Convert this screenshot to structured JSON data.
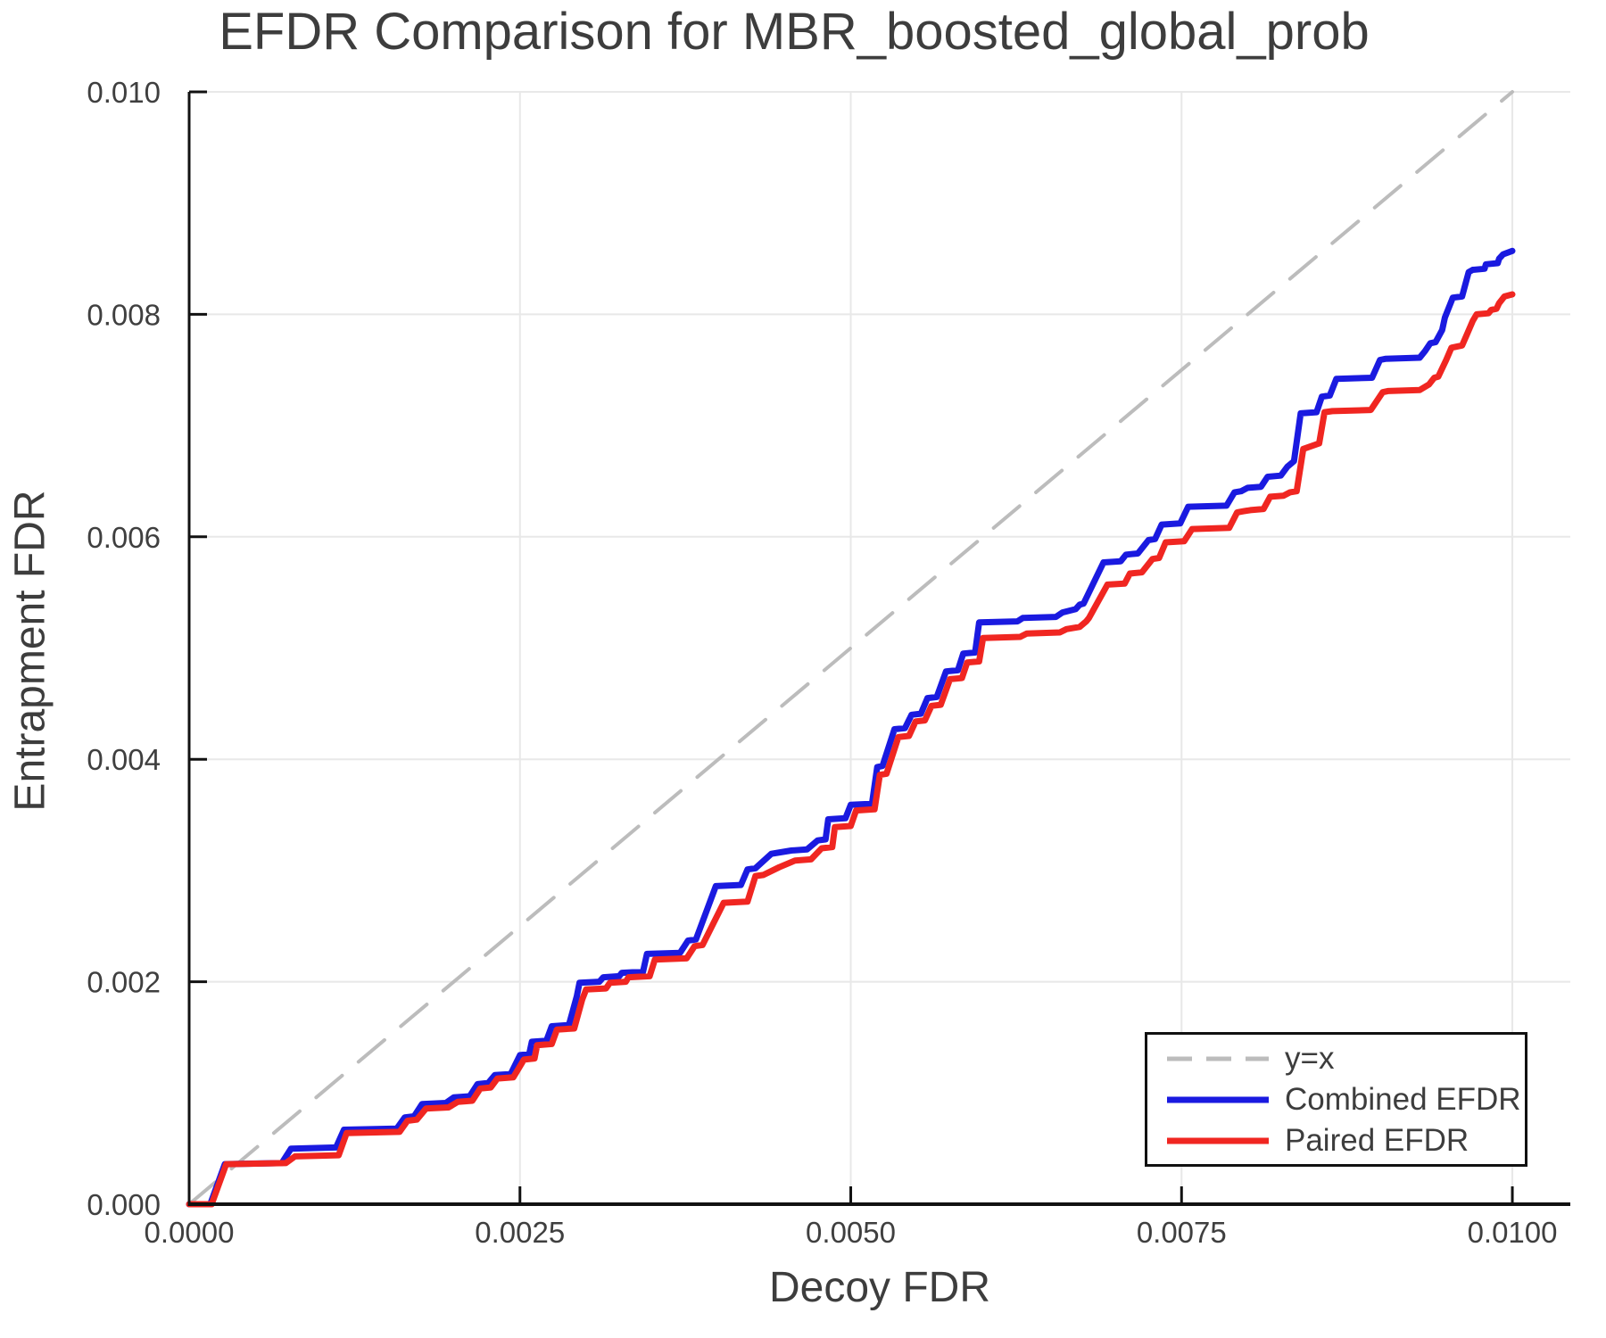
{
  "chart_data": {
    "type": "line",
    "title": "EFDR Comparison for MBR_boosted_global_prob",
    "xlabel": "Decoy FDR",
    "ylabel": "Entrapment FDR",
    "xlim": [
      0,
      0.010438
    ],
    "ylim": [
      0,
      0.01
    ],
    "grid": true,
    "legend_position": "bottom-right",
    "xticks": {
      "values": [
        0.0,
        0.0025,
        0.005,
        0.0075,
        0.01
      ],
      "labels": [
        "0.0000",
        "0.0025",
        "0.0050",
        "0.0075",
        "0.0100"
      ]
    },
    "yticks": {
      "values": [
        0.0,
        0.002,
        0.004,
        0.006,
        0.008,
        0.01
      ],
      "labels": [
        "0.000",
        "0.002",
        "0.004",
        "0.006",
        "0.008",
        "0.010"
      ]
    },
    "colors": {
      "grid": "#e8e8e8",
      "axis": "#111111",
      "text": "#3d3d3d",
      "reference": "#bcbcbc",
      "combined": "#1a1ae0",
      "paired": "#f02621"
    },
    "series": [
      {
        "name": "y=x",
        "style": "dashed",
        "color": "#bcbcbc",
        "points": [
          [
            0.0,
            0.0
          ],
          [
            0.01,
            0.01
          ]
        ]
      },
      {
        "name": "Combined EFDR",
        "style": "solid",
        "color": "#1a1ae0",
        "points": [
          [
            0.0,
            0.0
          ],
          [
            0.00016,
            0.0
          ],
          [
            0.00027,
            0.00036
          ],
          [
            0.0007,
            0.00037
          ],
          [
            0.00077,
            0.0005
          ],
          [
            0.00111,
            0.00051
          ],
          [
            0.00117,
            0.00067
          ],
          [
            0.00157,
            0.00068
          ],
          [
            0.00163,
            0.00078
          ],
          [
            0.0017,
            0.00079
          ],
          [
            0.00176,
            0.0009
          ],
          [
            0.00194,
            0.00091
          ],
          [
            0.002,
            0.00096
          ],
          [
            0.00212,
            0.00097
          ],
          [
            0.00218,
            0.00108
          ],
          [
            0.00226,
            0.00109
          ],
          [
            0.00231,
            0.00116
          ],
          [
            0.00243,
            0.00117
          ],
          [
            0.0025,
            0.00134
          ],
          [
            0.00257,
            0.00135
          ],
          [
            0.00259,
            0.00146
          ],
          [
            0.0027,
            0.00147
          ],
          [
            0.00274,
            0.0016
          ],
          [
            0.00287,
            0.00161
          ],
          [
            0.00293,
            0.00187
          ],
          [
            0.00295,
            0.00199
          ],
          [
            0.0031,
            0.002
          ],
          [
            0.00313,
            0.00204
          ],
          [
            0.00325,
            0.00205
          ],
          [
            0.00327,
            0.00208
          ],
          [
            0.00343,
            0.00209
          ],
          [
            0.00346,
            0.00225
          ],
          [
            0.00371,
            0.00226
          ],
          [
            0.00377,
            0.00237
          ],
          [
            0.00383,
            0.00238
          ],
          [
            0.00398,
            0.00286
          ],
          [
            0.00417,
            0.00287
          ],
          [
            0.00422,
            0.00301
          ],
          [
            0.00428,
            0.00302
          ],
          [
            0.0044,
            0.00315
          ],
          [
            0.00455,
            0.00318
          ],
          [
            0.00467,
            0.00319
          ],
          [
            0.00475,
            0.00327
          ],
          [
            0.00481,
            0.00328
          ],
          [
            0.00483,
            0.00346
          ],
          [
            0.00496,
            0.00347
          ],
          [
            0.005,
            0.00359
          ],
          [
            0.00516,
            0.0036
          ],
          [
            0.0052,
            0.00393
          ],
          [
            0.00524,
            0.00394
          ],
          [
            0.00533,
            0.00427
          ],
          [
            0.00541,
            0.00428
          ],
          [
            0.00546,
            0.0044
          ],
          [
            0.00553,
            0.00441
          ],
          [
            0.00558,
            0.00455
          ],
          [
            0.00565,
            0.00456
          ],
          [
            0.00572,
            0.00479
          ],
          [
            0.00581,
            0.0048
          ],
          [
            0.00585,
            0.00495
          ],
          [
            0.00594,
            0.00496
          ],
          [
            0.00597,
            0.00523
          ],
          [
            0.00626,
            0.00524
          ],
          [
            0.0063,
            0.00527
          ],
          [
            0.00655,
            0.00528
          ],
          [
            0.0066,
            0.00532
          ],
          [
            0.0067,
            0.00535
          ],
          [
            0.00673,
            0.00539
          ],
          [
            0.00676,
            0.0054
          ],
          [
            0.00691,
            0.00577
          ],
          [
            0.00704,
            0.00578
          ],
          [
            0.00708,
            0.00584
          ],
          [
            0.00717,
            0.00585
          ],
          [
            0.00725,
            0.00597
          ],
          [
            0.0073,
            0.00598
          ],
          [
            0.00735,
            0.00611
          ],
          [
            0.00749,
            0.00612
          ],
          [
            0.00755,
            0.00627
          ],
          [
            0.00784,
            0.00628
          ],
          [
            0.0079,
            0.0064
          ],
          [
            0.00795,
            0.00641
          ],
          [
            0.008,
            0.00644
          ],
          [
            0.0081,
            0.00645
          ],
          [
            0.00815,
            0.00654
          ],
          [
            0.00825,
            0.00655
          ],
          [
            0.0083,
            0.00663
          ],
          [
            0.00835,
            0.00668
          ],
          [
            0.0084,
            0.00711
          ],
          [
            0.00852,
            0.00712
          ],
          [
            0.00856,
            0.00726
          ],
          [
            0.00862,
            0.00727
          ],
          [
            0.00867,
            0.00742
          ],
          [
            0.00894,
            0.00743
          ],
          [
            0.009,
            0.00759
          ],
          [
            0.00904,
            0.0076
          ],
          [
            0.0093,
            0.00761
          ],
          [
            0.00934,
            0.00767
          ],
          [
            0.00938,
            0.00774
          ],
          [
            0.00942,
            0.00775
          ],
          [
            0.00947,
            0.00786
          ],
          [
            0.00949,
            0.00797
          ],
          [
            0.00955,
            0.00815
          ],
          [
            0.00962,
            0.00816
          ],
          [
            0.00964,
            0.00825
          ],
          [
            0.00967,
            0.00838
          ],
          [
            0.0097,
            0.0084
          ],
          [
            0.00979,
            0.00841
          ],
          [
            0.0098,
            0.00845
          ],
          [
            0.00989,
            0.00846
          ],
          [
            0.0099,
            0.0085
          ],
          [
            0.00993,
            0.00854
          ],
          [
            0.01,
            0.00857
          ]
        ]
      },
      {
        "name": "Paired EFDR",
        "style": "solid",
        "color": "#f02621",
        "points": [
          [
            0.0,
            0.0
          ],
          [
            0.00017,
            0.0
          ],
          [
            0.00028,
            0.00036
          ],
          [
            0.00073,
            0.00037
          ],
          [
            0.0008,
            0.00043
          ],
          [
            0.00113,
            0.00044
          ],
          [
            0.00119,
            0.00064
          ],
          [
            0.00159,
            0.00065
          ],
          [
            0.00165,
            0.00075
          ],
          [
            0.00172,
            0.00076
          ],
          [
            0.00179,
            0.00086
          ],
          [
            0.00196,
            0.00087
          ],
          [
            0.00203,
            0.00092
          ],
          [
            0.00214,
            0.00093
          ],
          [
            0.0022,
            0.00104
          ],
          [
            0.00228,
            0.00105
          ],
          [
            0.00233,
            0.00113
          ],
          [
            0.00245,
            0.00114
          ],
          [
            0.00253,
            0.0013
          ],
          [
            0.00261,
            0.00131
          ],
          [
            0.00263,
            0.00143
          ],
          [
            0.00274,
            0.00144
          ],
          [
            0.00278,
            0.00157
          ],
          [
            0.00291,
            0.00158
          ],
          [
            0.00297,
            0.00184
          ],
          [
            0.003,
            0.00193
          ],
          [
            0.00315,
            0.00194
          ],
          [
            0.00318,
            0.00199
          ],
          [
            0.0033,
            0.002
          ],
          [
            0.00332,
            0.00204
          ],
          [
            0.00348,
            0.00205
          ],
          [
            0.00352,
            0.0022
          ],
          [
            0.00376,
            0.00221
          ],
          [
            0.00382,
            0.00232
          ],
          [
            0.00388,
            0.00233
          ],
          [
            0.00404,
            0.00271
          ],
          [
            0.00422,
            0.00272
          ],
          [
            0.00428,
            0.00295
          ],
          [
            0.00434,
            0.00296
          ],
          [
            0.00446,
            0.00303
          ],
          [
            0.00458,
            0.00309
          ],
          [
            0.0047,
            0.0031
          ],
          [
            0.00478,
            0.0032
          ],
          [
            0.00486,
            0.00321
          ],
          [
            0.00488,
            0.00339
          ],
          [
            0.005,
            0.0034
          ],
          [
            0.00504,
            0.00354
          ],
          [
            0.00518,
            0.00355
          ],
          [
            0.00522,
            0.00386
          ],
          [
            0.00527,
            0.00387
          ],
          [
            0.00536,
            0.0042
          ],
          [
            0.00544,
            0.00421
          ],
          [
            0.00549,
            0.00434
          ],
          [
            0.00556,
            0.00435
          ],
          [
            0.00561,
            0.00448
          ],
          [
            0.00568,
            0.00449
          ],
          [
            0.00575,
            0.00472
          ],
          [
            0.00584,
            0.00473
          ],
          [
            0.00588,
            0.00487
          ],
          [
            0.00597,
            0.00488
          ],
          [
            0.006,
            0.00509
          ],
          [
            0.00628,
            0.0051
          ],
          [
            0.00633,
            0.00513
          ],
          [
            0.00658,
            0.00514
          ],
          [
            0.00663,
            0.00517
          ],
          [
            0.00673,
            0.00519
          ],
          [
            0.00678,
            0.00524
          ],
          [
            0.0068,
            0.00527
          ],
          [
            0.00694,
            0.00557
          ],
          [
            0.00707,
            0.00558
          ],
          [
            0.00711,
            0.00567
          ],
          [
            0.0072,
            0.00568
          ],
          [
            0.00728,
            0.0058
          ],
          [
            0.00733,
            0.00581
          ],
          [
            0.00738,
            0.00595
          ],
          [
            0.00752,
            0.00596
          ],
          [
            0.00758,
            0.00607
          ],
          [
            0.00786,
            0.00608
          ],
          [
            0.00792,
            0.00622
          ],
          [
            0.00797,
            0.00623
          ],
          [
            0.00802,
            0.00624
          ],
          [
            0.00812,
            0.00625
          ],
          [
            0.00817,
            0.00636
          ],
          [
            0.00827,
            0.00637
          ],
          [
            0.00832,
            0.0064
          ],
          [
            0.00837,
            0.00641
          ],
          [
            0.00842,
            0.00679
          ],
          [
            0.00854,
            0.00684
          ],
          [
            0.00858,
            0.00712
          ],
          [
            0.00864,
            0.00713
          ],
          [
            0.00893,
            0.00714
          ],
          [
            0.00902,
            0.0073
          ],
          [
            0.00906,
            0.00731
          ],
          [
            0.0093,
            0.00732
          ],
          [
            0.00937,
            0.00737
          ],
          [
            0.00941,
            0.00743
          ],
          [
            0.00944,
            0.00744
          ],
          [
            0.0095,
            0.00759
          ],
          [
            0.00954,
            0.0077
          ],
          [
            0.00962,
            0.00772
          ],
          [
            0.00965,
            0.0078
          ],
          [
            0.0097,
            0.00794
          ],
          [
            0.00973,
            0.008
          ],
          [
            0.00982,
            0.00801
          ],
          [
            0.00984,
            0.00804
          ],
          [
            0.00988,
            0.00805
          ],
          [
            0.0099,
            0.0081
          ],
          [
            0.00994,
            0.00816
          ],
          [
            0.01,
            0.00818
          ]
        ]
      }
    ]
  }
}
